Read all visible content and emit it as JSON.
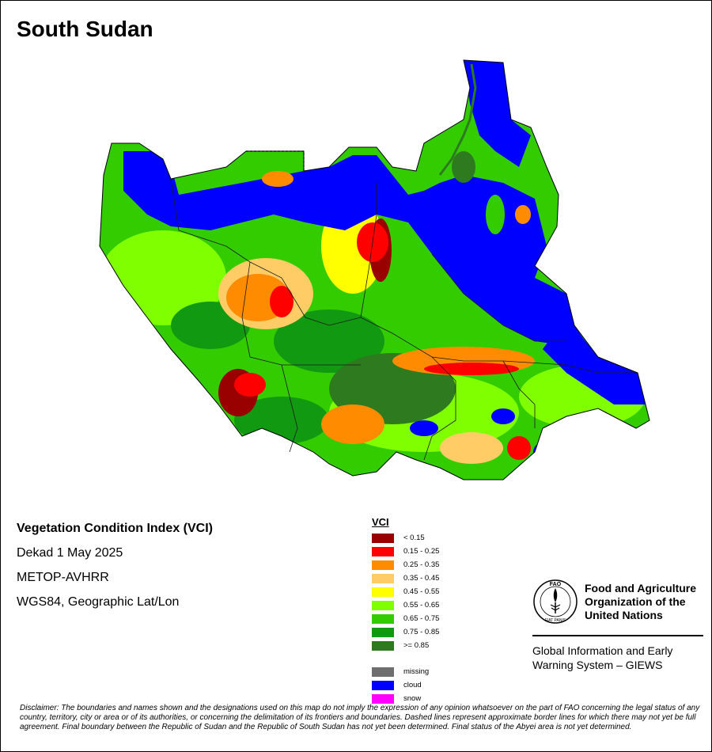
{
  "title": "South Sudan",
  "map": {
    "country": "South Sudan",
    "description": "VCI raster map",
    "region_notes": [
      "north: cloud (blue)",
      "center: mixed green/orange/red",
      "south: green with red patches"
    ]
  },
  "metadata": {
    "index_name": "Vegetation Condition Index (VCI)",
    "period": "Dekad 1 May 2025",
    "sensor": "METOP-AVHRR",
    "projection": "WGS84, Geographic Lat/Lon"
  },
  "legend": {
    "title": "VCI",
    "classes": [
      {
        "label": "< 0.15",
        "color": "#990000"
      },
      {
        "label": "0.15 - 0.25",
        "color": "#ff0000"
      },
      {
        "label": "0.25 - 0.35",
        "color": "#ff8c00"
      },
      {
        "label": "0.35 - 0.45",
        "color": "#ffcc66"
      },
      {
        "label": "0.45 - 0.55",
        "color": "#ffff00"
      },
      {
        "label": "0.55 - 0.65",
        "color": "#7fff00"
      },
      {
        "label": "0.65 - 0.75",
        "color": "#33cc00"
      },
      {
        "label": "0.75 - 0.85",
        "color": "#119911"
      },
      {
        "label": ">= 0.85",
        "color": "#2d7a1f"
      }
    ],
    "extra": [
      {
        "label": "missing",
        "color": "#6e6e6e"
      },
      {
        "label": "cloud",
        "color": "#0000ff"
      },
      {
        "label": "snow",
        "color": "#ff00ff"
      }
    ]
  },
  "organization": {
    "name": "Food and Agriculture Organization of the United Nations",
    "system": "Global Information and Early Warning System – GIEWS",
    "logo_letters": "FAO",
    "logo_motto": "FIAT PANIS"
  },
  "disclaimer": "Disclaimer: The boundaries and names shown and the designations used on this map do not imply the expression of any opinion whatsoever on the part of FAO concerning the legal status of any country, territory, city or area or of its authorities, or concerning the delimitation of its frontiers and boundaries. Dashed lines represent approximate border lines for which there may not yet be full agreement.  Final boundary between the Republic of Sudan and the Republic of South Sudan has not yet been determined. Final status of the Abyei area is not yet determined."
}
